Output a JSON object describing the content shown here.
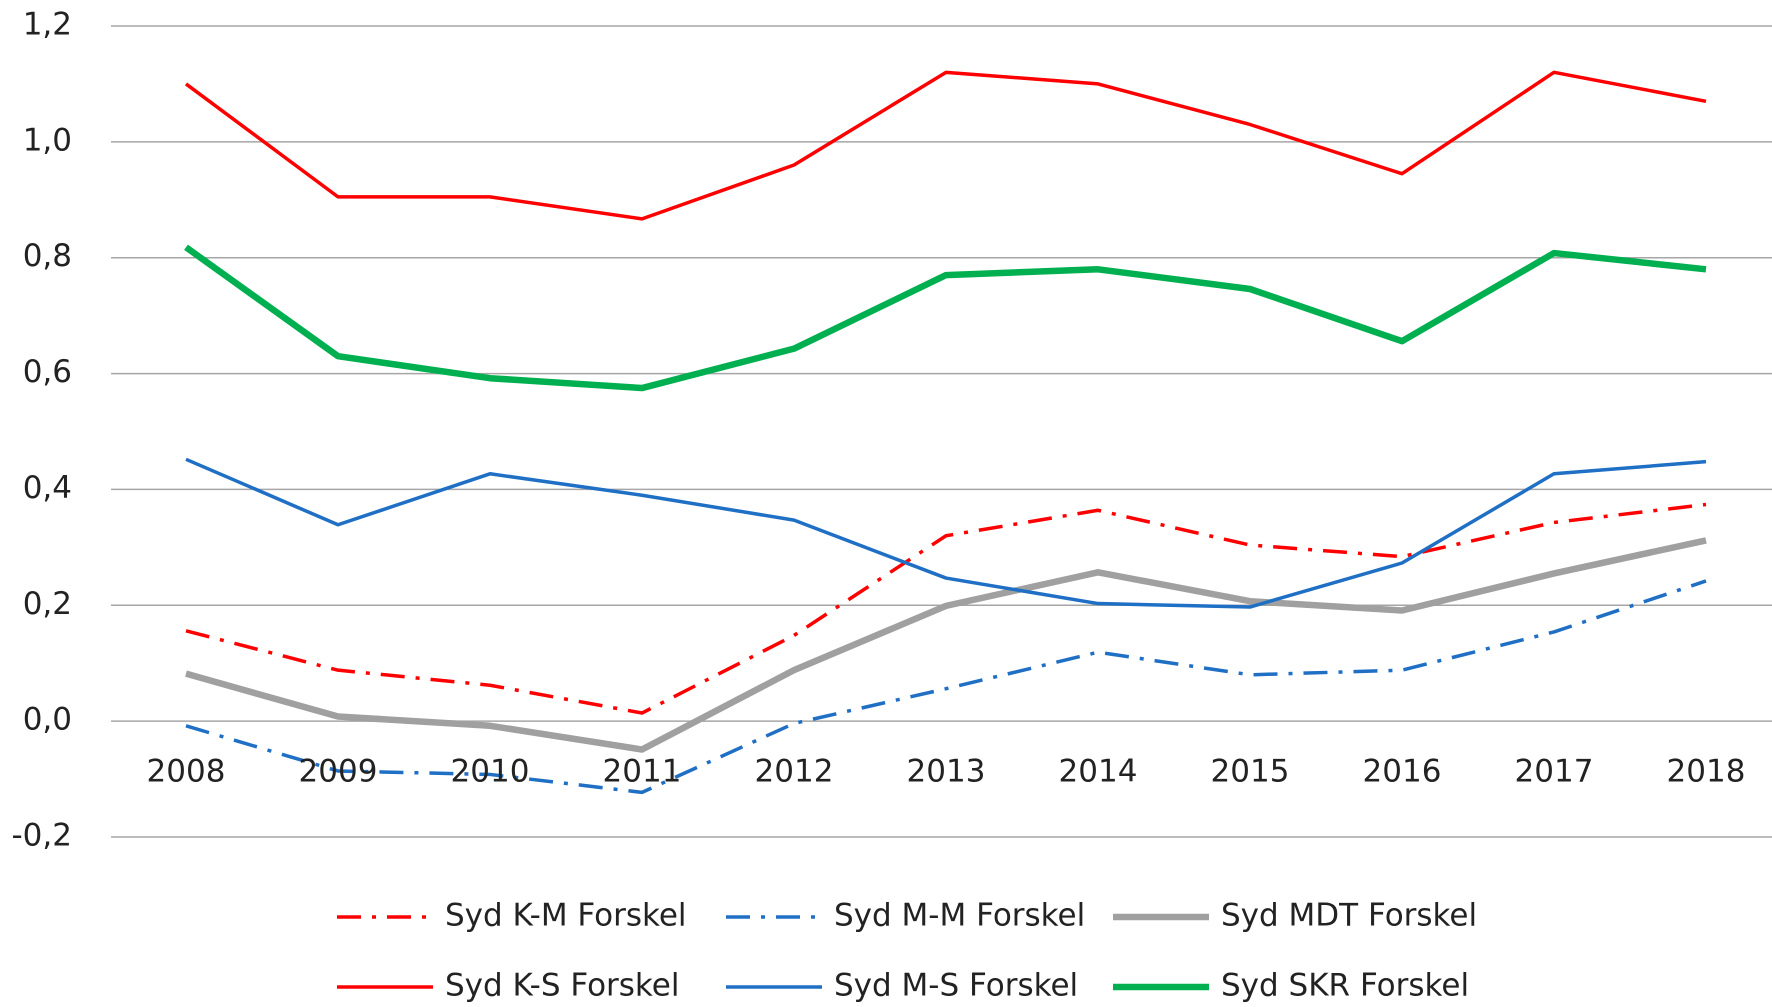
{
  "chart_data": {
    "type": "line",
    "categories": [
      "2008",
      "2009",
      "2010",
      "2011",
      "2012",
      "2013",
      "2014",
      "2015",
      "2016",
      "2017",
      "2018"
    ],
    "ylim": [
      -0.2,
      1.2
    ],
    "yticks": [
      {
        "value": -0.2,
        "label": "-0,2"
      },
      {
        "value": 0,
        "label": "0,0"
      },
      {
        "value": 0.2,
        "label": "0,2"
      },
      {
        "value": 0.4,
        "label": "0,4"
      },
      {
        "value": 0.6,
        "label": "0,6"
      },
      {
        "value": 0.8,
        "label": "0,8"
      },
      {
        "value": 1.0,
        "label": "1,0"
      },
      {
        "value": 1.2,
        "label": "1,2"
      }
    ],
    "grid": true,
    "legend": "bottom",
    "series": [
      {
        "name": "Syd K-M Forskel",
        "color": "#ff0000",
        "style": "dashdot",
        "values": [
          0.156,
          0.088,
          0.062,
          0.014,
          0.148,
          0.32,
          0.364,
          0.304,
          0.284,
          0.343,
          0.374
        ]
      },
      {
        "name": "Syd M-M Forskel",
        "color": "#1f6fc5",
        "style": "dashdot",
        "values": [
          -0.008,
          -0.086,
          -0.092,
          -0.123,
          -0.004,
          0.056,
          0.119,
          0.08,
          0.088,
          0.154,
          0.242
        ]
      },
      {
        "name": "Syd MDT Forskel",
        "color": "#a0a0a0",
        "style": "thick",
        "values": [
          0.082,
          0.008,
          -0.008,
          -0.049,
          0.088,
          0.199,
          0.257,
          0.207,
          0.191,
          0.255,
          0.312
        ]
      },
      {
        "name": "Syd K-S Forskel",
        "color": "#ff0000",
        "style": "solid",
        "values": [
          1.1,
          0.905,
          0.905,
          0.867,
          0.96,
          1.12,
          1.1,
          1.03,
          0.945,
          1.12,
          1.07
        ]
      },
      {
        "name": "Syd M-S Forskel",
        "color": "#1f6fc5",
        "style": "solid",
        "values": [
          0.452,
          0.339,
          0.427,
          0.39,
          0.347,
          0.247,
          0.203,
          0.197,
          0.273,
          0.427,
          0.448
        ]
      },
      {
        "name": "Syd SKR Forskel",
        "color": "#00b050",
        "style": "thick",
        "values": [
          0.818,
          0.63,
          0.592,
          0.575,
          0.643,
          0.77,
          0.78,
          0.746,
          0.656,
          0.808,
          0.78
        ]
      }
    ]
  }
}
